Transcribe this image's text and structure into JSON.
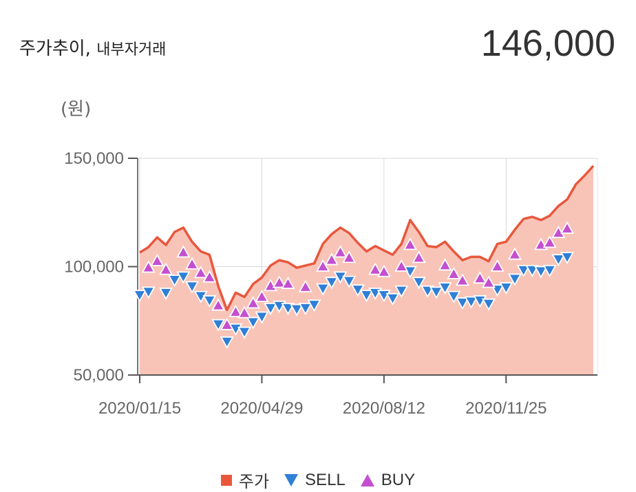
{
  "header": {
    "title": "주가추이,",
    "subtitle": "내부자거래",
    "price": "146,000"
  },
  "chart_data": {
    "type": "area",
    "unit_label": "(원)",
    "ylim": [
      50000,
      150000
    ],
    "y_ticks": [
      50000,
      100000,
      150000
    ],
    "y_tick_labels": [
      "50,000",
      "100,000",
      "150,000"
    ],
    "x_tick_labels": [
      "2020/01/15",
      "2020/04/29",
      "2020/08/12",
      "2020/11/25"
    ],
    "colors": {
      "price_line": "#e8573c",
      "price_fill": "#f9c4b8",
      "sell": "#2f7fd6",
      "buy": "#c44fd0"
    },
    "legend": {
      "placement": "bottom",
      "items": [
        "주가",
        "SELL",
        "BUY"
      ]
    },
    "price": [
      106500,
      109000,
      113500,
      110000,
      116000,
      118000,
      111500,
      107000,
      105500,
      91000,
      80000,
      88000,
      86000,
      92000,
      95000,
      100500,
      103000,
      102000,
      99500,
      100500,
      101500,
      110500,
      115000,
      118000,
      115500,
      111000,
      107000,
      109500,
      107500,
      105500,
      110500,
      121500,
      116000,
      109500,
      109000,
      111500,
      107000,
      103000,
      104500,
      104500,
      102500,
      110500,
      111500,
      117000,
      122000,
      123000,
      121500,
      123500,
      128000,
      131000,
      138000,
      142000,
      146500
    ],
    "sell": [
      {
        "i": 0,
        "v": 87000
      },
      {
        "i": 1,
        "v": 88500
      },
      {
        "i": 3,
        "v": 88000
      },
      {
        "i": 4,
        "v": 94000
      },
      {
        "i": 5,
        "v": 95500
      },
      {
        "i": 6,
        "v": 91000
      },
      {
        "i": 7,
        "v": 86500
      },
      {
        "i": 8,
        "v": 84500
      },
      {
        "i": 9,
        "v": 73500
      },
      {
        "i": 10,
        "v": 65500
      },
      {
        "i": 11,
        "v": 71500
      },
      {
        "i": 12,
        "v": 70000
      },
      {
        "i": 13,
        "v": 74500
      },
      {
        "i": 14,
        "v": 77000
      },
      {
        "i": 15,
        "v": 81000
      },
      {
        "i": 16,
        "v": 82000
      },
      {
        "i": 17,
        "v": 81000
      },
      {
        "i": 18,
        "v": 80500
      },
      {
        "i": 19,
        "v": 81000
      },
      {
        "i": 20,
        "v": 82500
      },
      {
        "i": 21,
        "v": 90000
      },
      {
        "i": 22,
        "v": 93000
      },
      {
        "i": 23,
        "v": 95500
      },
      {
        "i": 24,
        "v": 93500
      },
      {
        "i": 25,
        "v": 89500
      },
      {
        "i": 26,
        "v": 87000
      },
      {
        "i": 27,
        "v": 88000
      },
      {
        "i": 28,
        "v": 87000
      },
      {
        "i": 29,
        "v": 85500
      },
      {
        "i": 30,
        "v": 89000
      },
      {
        "i": 31,
        "v": 98000
      },
      {
        "i": 32,
        "v": 93000
      },
      {
        "i": 33,
        "v": 89000
      },
      {
        "i": 34,
        "v": 88500
      },
      {
        "i": 35,
        "v": 90500
      },
      {
        "i": 36,
        "v": 86500
      },
      {
        "i": 37,
        "v": 83500
      },
      {
        "i": 38,
        "v": 84000
      },
      {
        "i": 39,
        "v": 84500
      },
      {
        "i": 40,
        "v": 83000
      },
      {
        "i": 41,
        "v": 89500
      },
      {
        "i": 42,
        "v": 90500
      },
      {
        "i": 43,
        "v": 94500
      },
      {
        "i": 44,
        "v": 98500
      },
      {
        "i": 45,
        "v": 98500
      },
      {
        "i": 46,
        "v": 98000
      },
      {
        "i": 47,
        "v": 98500
      },
      {
        "i": 48,
        "v": 103500
      },
      {
        "i": 49,
        "v": 104500
      }
    ],
    "buy": [
      {
        "i": 1,
        "v": 99500
      },
      {
        "i": 2,
        "v": 102500
      },
      {
        "i": 3,
        "v": 98500
      },
      {
        "i": 5,
        "v": 106500
      },
      {
        "i": 6,
        "v": 101000
      },
      {
        "i": 7,
        "v": 97000
      },
      {
        "i": 8,
        "v": 95000
      },
      {
        "i": 9,
        "v": 82000
      },
      {
        "i": 10,
        "v": 73000
      },
      {
        "i": 11,
        "v": 79000
      },
      {
        "i": 12,
        "v": 78500
      },
      {
        "i": 13,
        "v": 83000
      },
      {
        "i": 14,
        "v": 86000
      },
      {
        "i": 15,
        "v": 91000
      },
      {
        "i": 16,
        "v": 92500
      },
      {
        "i": 17,
        "v": 92000
      },
      {
        "i": 19,
        "v": 90500
      },
      {
        "i": 21,
        "v": 100000
      },
      {
        "i": 22,
        "v": 103000
      },
      {
        "i": 23,
        "v": 106500
      },
      {
        "i": 24,
        "v": 104000
      },
      {
        "i": 27,
        "v": 98500
      },
      {
        "i": 28,
        "v": 97500
      },
      {
        "i": 30,
        "v": 100000
      },
      {
        "i": 31,
        "v": 110000
      },
      {
        "i": 32,
        "v": 104000
      },
      {
        "i": 35,
        "v": 100500
      },
      {
        "i": 36,
        "v": 96500
      },
      {
        "i": 37,
        "v": 93500
      },
      {
        "i": 39,
        "v": 94500
      },
      {
        "i": 40,
        "v": 92500
      },
      {
        "i": 41,
        "v": 100000
      },
      {
        "i": 43,
        "v": 105500
      },
      {
        "i": 46,
        "v": 110000
      },
      {
        "i": 47,
        "v": 111000
      },
      {
        "i": 48,
        "v": 115500
      },
      {
        "i": 49,
        "v": 117500
      }
    ]
  }
}
